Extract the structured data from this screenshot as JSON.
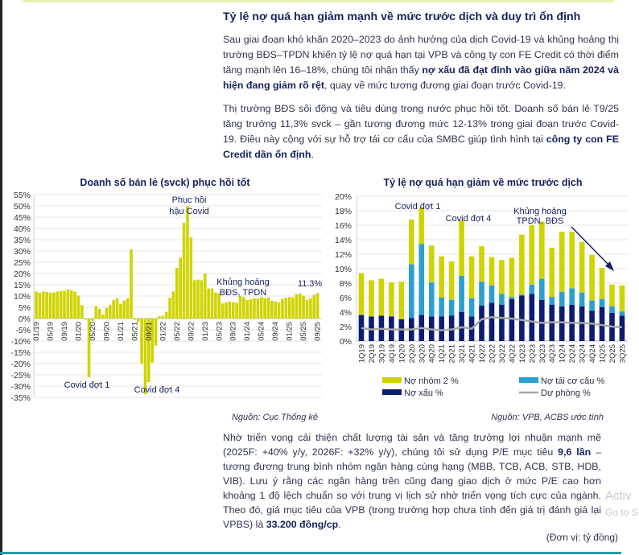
{
  "heading": "Tỷ lệ nợ quá hạn giảm mạnh về mức trước dịch và duy trì ổn định",
  "para1": {
    "s1": "Sau giai đoạn khó khăn 2020–2023 do ảnh hưởng của dịch Covid-19 và khủng hoảng thị trường BĐS–TPDN khiến tỷ lệ nợ quá hạn tại VPB và công ty con FE Credit có thời điểm tăng mạnh lên 16–18%, chúng tôi nhận thấy ",
    "b1": "nợ xấu đã đạt đỉnh vào giữa năm 2024 và hiện đang giảm rõ rệt",
    "s2": ", quay về mức tương đương giai đoạn trước Covid-19."
  },
  "para2": {
    "s1": "Thị trường BĐS sôi động và tiêu dùng trong nước phục hồi tốt. Doanh số bán lẻ T9/25 tăng trưởng 11,3% svck – gần tương đương mức 12-13% trong giai đoạn trước Covid-19. Điều này cộng với sự hỗ trợ tái cơ cấu của SMBC giúp tình hình tại ",
    "b1": "công ty con FE Credit dần ổn định",
    "s2": "."
  },
  "para3": {
    "s1": "Nhờ triển vọng cải thiện chất lượng tài sản và tăng trưởng lợi nhuận mạnh mẽ (2025F: +40% y/y, 2026F: +32% y/y), chúng tôi sử dụng P/E mục tiêu ",
    "b1": "9,6 lần",
    "s2": " – tương đương trung bình nhóm ngân hàng cùng hạng (MBB, TCB, ACB, STB, HDB, VIB). Lưu ý rằng các ngân hàng trên cũng đang giao dịch ở mức P/E cao hơn khoảng 1 độ lệch chuẩn so với trung vị lịch sử nhờ triển vọng tích cực của ngành. Theo đó, giá mục tiêu của VPB (trong trường hợp chưa tính đến giá trị đánh giá lại VPBS) là ",
    "b2": "33.200 đồng/cp",
    "s3": "."
  },
  "unit_note": "(Đơn vị: tỷ đồng)",
  "watermark": {
    "line1": "Activ",
    "line2": "Go to S"
  },
  "sources": {
    "left": "Nguồn: Cục Thống kê",
    "right": "Nguồn: VPB, ACBS ước tính"
  },
  "colors": {
    "yellow": "#cfd400",
    "blue": "#2ba0cf",
    "navy": "#0c1c70",
    "gray": "#a6a6a6",
    "title": "#14215e"
  },
  "chart_data": [
    {
      "type": "bar",
      "title": "Doanh số bán lẻ (svck) phục hồi tốt",
      "xlabel": "",
      "ylabel": "",
      "ylim": [
        -35,
        55
      ],
      "y_ticks": [
        "55%",
        "50%",
        "45%",
        "40%",
        "35%",
        "30%",
        "25%",
        "20%",
        "15%",
        "10%",
        "5%",
        "0%",
        "-5%",
        "-10%",
        "-15%",
        "-20%",
        "-25%",
        "-30%",
        "-35%"
      ],
      "grid": true,
      "x_tick_labels": [
        "01/19",
        "05/19",
        "09/19",
        "01/20",
        "05/20",
        "09/20",
        "01/21",
        "05/21",
        "09/21",
        "01/22",
        "05/22",
        "09/22",
        "01/23",
        "05/23",
        "09/23",
        "01/24",
        "05/24",
        "09/24",
        "01/25",
        "05/25",
        "09/25"
      ],
      "categories": [
        "01/19",
        "02/19",
        "03/19",
        "04/19",
        "05/19",
        "06/19",
        "07/19",
        "08/19",
        "09/19",
        "10/19",
        "11/19",
        "12/19",
        "01/20",
        "02/20",
        "03/20",
        "04/20",
        "05/20",
        "06/20",
        "07/20",
        "08/20",
        "09/20",
        "10/20",
        "11/20",
        "12/20",
        "01/21",
        "02/21",
        "03/21",
        "04/21",
        "05/21",
        "06/21",
        "07/21",
        "08/21",
        "09/21",
        "10/21",
        "11/21",
        "12/21",
        "01/22",
        "02/22",
        "03/22",
        "04/22",
        "05/22",
        "06/22",
        "07/22",
        "08/22",
        "09/22",
        "10/22",
        "11/22",
        "12/22",
        "01/23",
        "02/23",
        "03/23",
        "04/23",
        "05/23",
        "06/23",
        "07/23",
        "08/23",
        "09/23",
        "10/23",
        "11/23",
        "12/23",
        "01/24",
        "02/24",
        "03/24",
        "04/24",
        "05/24",
        "06/24",
        "07/24",
        "08/24",
        "09/24",
        "10/24",
        "11/24",
        "12/24",
        "01/25",
        "02/25",
        "03/25",
        "04/25",
        "05/25",
        "06/25",
        "07/25",
        "08/25",
        "09/25"
      ],
      "values": [
        12.0,
        11.5,
        12.0,
        11.8,
        11.5,
        11.5,
        12.0,
        12.2,
        12.3,
        13.0,
        12.5,
        12.0,
        10.2,
        6.0,
        -0.5,
        -26.0,
        -1.0,
        5.5,
        4.3,
        1.8,
        4.7,
        6.0,
        8.2,
        9.0,
        6.5,
        8.0,
        9.0,
        30.8,
        -0.5,
        -1.5,
        -20.0,
        -33.7,
        -28.2,
        -19.6,
        -12.0,
        1.0,
        1.2,
        3.0,
        9.2,
        12.0,
        22.5,
        27.0,
        42.5,
        50.0,
        36.0,
        17.0,
        17.3,
        17.0,
        20.0,
        13.3,
        13.3,
        11.5,
        11.3,
        6.7,
        7.2,
        7.5,
        7.3,
        7.0,
        10.0,
        9.5,
        8.2,
        8.5,
        9.0,
        9.0,
        9.5,
        9.1,
        9.4,
        7.9,
        7.6,
        7.1,
        8.8,
        9.3,
        9.5,
        9.4,
        10.8,
        11.1,
        10.2,
        8.3,
        9.0,
        10.5,
        11.3
      ],
      "annotations": {
        "covid1": "Covid đợt 1",
        "covid4": "Covid đợt 4",
        "recovery_l1": "Phục hồi",
        "recovery_l2": "hậu Covid",
        "crisis_l1": "Khủng hoảng",
        "crisis_l2": "BĐS, TPDN",
        "last": "11.3%"
      }
    },
    {
      "type": "bar",
      "stacked": true,
      "title": "Tỷ lệ nợ quá hạn giảm về mức trước dịch",
      "xlabel": "",
      "ylabel": "",
      "ylim": [
        0,
        20
      ],
      "y_ticks": [
        "20%",
        "18%",
        "16%",
        "14%",
        "12%",
        "10%",
        "8%",
        "6%",
        "4%",
        "2%",
        "0%"
      ],
      "grid": true,
      "legend_position": "bottom",
      "categories": [
        "1Q19",
        "2Q19",
        "3Q19",
        "4Q19",
        "1Q20",
        "2Q20",
        "3Q20",
        "4Q20",
        "1Q21",
        "2Q21",
        "3Q21",
        "4Q21",
        "1Q22",
        "2Q22",
        "3Q22",
        "4Q22",
        "1Q23",
        "2Q23",
        "3Q23",
        "4Q23",
        "1Q24",
        "2Q24",
        "3Q24",
        "4Q24",
        "1Q25",
        "2Q25",
        "3Q25"
      ],
      "series": [
        {
          "name": "Nợ xấu %",
          "kind": "bar",
          "color": "#0c1c70",
          "values": [
            3.6,
            3.4,
            3.5,
            3.4,
            3.0,
            3.2,
            3.6,
            3.4,
            3.4,
            3.5,
            4.0,
            3.4,
            4.9,
            5.3,
            5.0,
            5.8,
            6.3,
            6.5,
            5.7,
            5.0,
            4.8,
            5.0,
            4.8,
            4.2,
            4.7,
            3.9,
            3.5
          ]
        },
        {
          "name": "Nợ tái cơ cấu %",
          "kind": "bar",
          "color": "#2ba0cf",
          "values": [
            0,
            0,
            0,
            0,
            0,
            7.4,
            9.8,
            4.7,
            2.6,
            2.2,
            5.0,
            2.5,
            3.3,
            2.4,
            1.5,
            0.3,
            0.1,
            1.3,
            2.9,
            1.1,
            2.0,
            2.3,
            1.9,
            1.4,
            1.1,
            0.9,
            0.6
          ]
        },
        {
          "name": "Nợ nhóm 2 %",
          "kind": "bar",
          "color": "#cfd400",
          "values": [
            5.8,
            5.0,
            5.1,
            4.7,
            5.2,
            6.2,
            5.1,
            5.1,
            5.7,
            5.3,
            7.7,
            5.8,
            4.9,
            3.9,
            4.7,
            5.4,
            8.3,
            8.2,
            7.9,
            6.8,
            8.3,
            7.8,
            7.0,
            6.3,
            4.3,
            3.0,
            3.6
          ]
        },
        {
          "name": "Dự phòng %",
          "kind": "line",
          "color": "#a6a6a6",
          "values": [
            1.8,
            1.6,
            1.7,
            1.6,
            1.6,
            1.6,
            1.8,
            1.6,
            1.5,
            1.6,
            1.9,
            1.7,
            3.0,
            3.3,
            3.2,
            3.1,
            2.9,
            2.7,
            2.5,
            2.6,
            2.6,
            2.5,
            2.5,
            2.4,
            2.2,
            2.0,
            1.9
          ]
        }
      ],
      "annotations": {
        "covid1": "Covid đợt 1",
        "covid4": "Covid đợt 4",
        "crisis_l1": "Khủng hoảng",
        "crisis_l2": "TPDN, BĐS"
      }
    }
  ]
}
